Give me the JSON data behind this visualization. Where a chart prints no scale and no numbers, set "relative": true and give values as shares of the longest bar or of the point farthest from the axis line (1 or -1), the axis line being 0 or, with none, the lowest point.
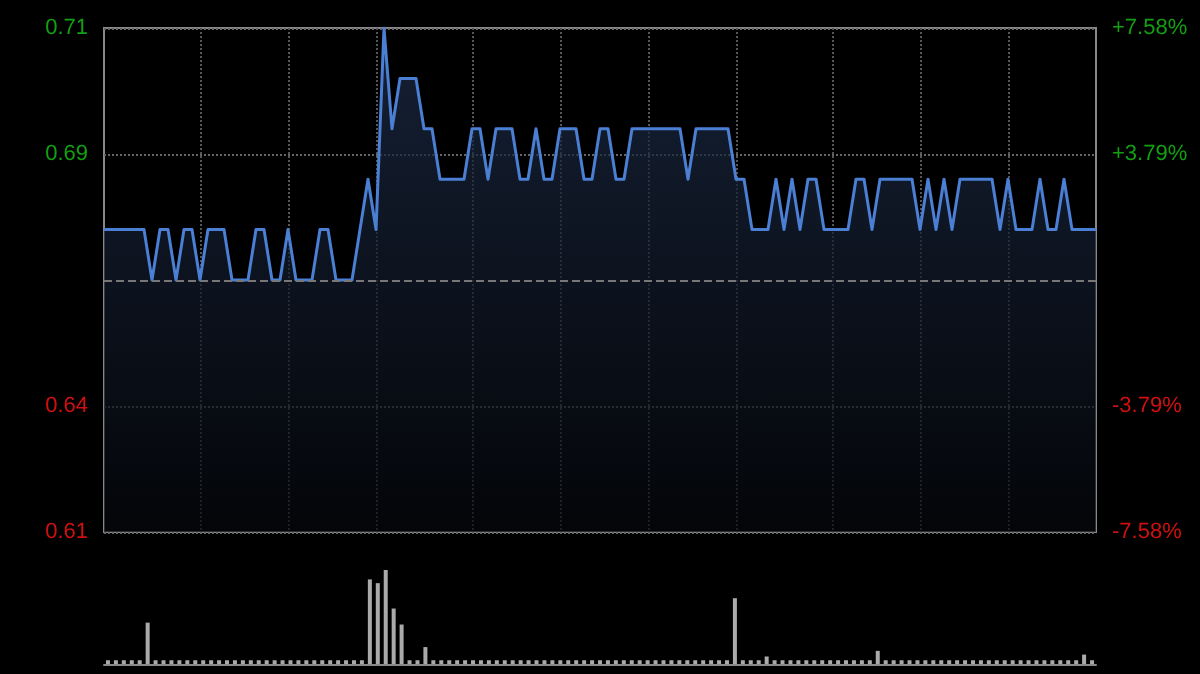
{
  "chart_data": [
    {
      "type": "area",
      "tick_labels": "y",
      "grid": true,
      "categories": [
        null,
        null,
        null,
        null,
        null,
        null,
        null,
        null,
        null,
        null,
        null,
        null,
        null,
        null,
        null,
        null,
        null,
        null,
        null,
        null,
        null,
        null,
        null,
        null,
        null,
        null,
        null,
        null,
        null,
        null,
        null,
        null,
        null,
        null,
        null,
        null,
        null,
        null,
        null,
        null,
        null,
        null,
        null,
        null,
        null,
        null,
        null,
        null,
        null,
        null,
        null,
        null,
        null,
        null,
        null,
        null,
        null,
        null,
        null,
        null,
        null,
        null,
        null,
        null,
        null,
        null,
        null,
        null,
        null,
        null,
        null,
        null,
        null,
        null,
        null,
        null,
        null,
        null,
        null,
        null,
        null,
        null,
        null,
        null,
        null,
        null,
        null,
        null,
        null,
        null,
        null,
        null,
        null,
        null,
        null,
        null,
        null,
        null,
        null,
        null,
        null,
        null,
        null,
        null,
        null,
        null,
        null,
        null,
        null,
        null,
        null,
        null,
        null,
        null,
        null,
        null,
        null,
        null,
        null,
        null,
        null,
        null,
        null,
        null,
        null
      ],
      "series": [
        {
          "color": "#4a7fd4",
          "values": [
            0.67,
            0.67,
            0.67,
            0.67,
            0.67,
            0.67,
            0.66,
            0.67,
            0.67,
            0.66,
            0.67,
            0.67,
            0.66,
            0.67,
            0.67,
            0.67,
            0.66,
            0.66,
            0.66,
            0.67,
            0.67,
            0.66,
            0.66,
            0.67,
            0.66,
            0.66,
            0.66,
            0.67,
            0.67,
            0.66,
            0.66,
            0.66,
            0.67,
            0.68,
            0.67,
            0.71,
            0.69,
            0.7,
            0.7,
            0.7,
            0.69,
            0.69,
            0.68,
            0.68,
            0.68,
            0.68,
            0.69,
            0.69,
            0.68,
            0.69,
            0.69,
            0.69,
            0.68,
            0.68,
            0.69,
            0.68,
            0.68,
            0.69,
            0.69,
            0.69,
            0.68,
            0.68,
            0.69,
            0.69,
            0.68,
            0.68,
            0.69,
            0.69,
            0.69,
            0.69,
            0.69,
            0.69,
            0.69,
            0.68,
            0.69,
            0.69,
            0.69,
            0.69,
            0.69,
            0.68,
            0.68,
            0.67,
            0.67,
            0.67,
            0.68,
            0.67,
            0.68,
            0.67,
            0.68,
            0.68,
            0.67,
            0.67,
            0.67,
            0.67,
            0.68,
            0.68,
            0.67,
            0.68,
            0.68,
            0.68,
            0.68,
            0.68,
            0.67,
            0.68,
            0.67,
            0.68,
            0.67,
            0.68,
            0.68,
            0.68,
            0.68,
            0.68,
            0.67,
            0.68,
            0.67,
            0.67,
            0.67,
            0.68,
            0.67,
            0.67,
            0.68,
            0.67,
            0.67,
            0.67,
            0.67
          ]
        }
      ],
      "ylim": [
        0.61,
        0.71
      ],
      "yticks": [
        0.61,
        {
          "value": 0.635,
          "label": "0.64"
        },
        {
          "value": 0.685,
          "label": "0.69"
        },
        0.71
      ],
      "y2lim": [
        -7.58,
        7.58
      ],
      "y2ticks": [
        {
          "value": -7.58,
          "label": "-7.58%"
        },
        {
          "value": -3.79,
          "label": "-3.79%"
        },
        {
          "value": 3.79,
          "label": "+3.79%"
        },
        {
          "value": 7.58,
          "label": "+7.58%"
        }
      ],
      "ref_lines": [
        {
          "axis": "y",
          "value": 0.66,
          "color": "#777777",
          "line_style": "dashed"
        }
      ]
    },
    {
      "type": "bar",
      "relative": true,
      "tick_labels": false,
      "color": "#aaaaaa",
      "categories": [
        null,
        null,
        null,
        null,
        null,
        null,
        null,
        null,
        null,
        null,
        null,
        null,
        null,
        null,
        null,
        null,
        null,
        null,
        null,
        null,
        null,
        null,
        null,
        null,
        null,
        null,
        null,
        null,
        null,
        null,
        null,
        null,
        null,
        null,
        null,
        null,
        null,
        null,
        null,
        null,
        null,
        null,
        null,
        null,
        null,
        null,
        null,
        null,
        null,
        null,
        null,
        null,
        null,
        null,
        null,
        null,
        null,
        null,
        null,
        null,
        null,
        null,
        null,
        null,
        null,
        null,
        null,
        null,
        null,
        null,
        null,
        null,
        null,
        null,
        null,
        null,
        null,
        null,
        null,
        null,
        null,
        null,
        null,
        null,
        null,
        null,
        null,
        null,
        null,
        null,
        null,
        null,
        null,
        null,
        null,
        null,
        null,
        null,
        null,
        null,
        null,
        null,
        null,
        null,
        null,
        null,
        null,
        null,
        null,
        null,
        null,
        null,
        null,
        null,
        null,
        null,
        null,
        null,
        null,
        null,
        null,
        null,
        null,
        null,
        null
      ],
      "values": [
        0.04,
        0.04,
        0.04,
        0.04,
        0.04,
        0.44,
        0.04,
        0.04,
        0.04,
        0.04,
        0.04,
        0.04,
        0.04,
        0.04,
        0.04,
        0.04,
        0.04,
        0.04,
        0.04,
        0.04,
        0.04,
        0.04,
        0.04,
        0.04,
        0.04,
        0.04,
        0.04,
        0.04,
        0.04,
        0.04,
        0.04,
        0.04,
        0.04,
        0.9,
        0.86,
        1,
        0.59,
        0.42,
        0.04,
        0.04,
        0.18,
        0.04,
        0.04,
        0.04,
        0.04,
        0.04,
        0.04,
        0.04,
        0.04,
        0.04,
        0.04,
        0.04,
        0.04,
        0.04,
        0.04,
        0.04,
        0.04,
        0.04,
        0.04,
        0.04,
        0.04,
        0.04,
        0.04,
        0.04,
        0.04,
        0.04,
        0.04,
        0.04,
        0.04,
        0.04,
        0.04,
        0.04,
        0.04,
        0.04,
        0.04,
        0.04,
        0.04,
        0.04,
        0.04,
        0.7,
        0.04,
        0.04,
        0.04,
        0.08,
        0.04,
        0.04,
        0.04,
        0.04,
        0.04,
        0.04,
        0.04,
        0.04,
        0.04,
        0.04,
        0.04,
        0.04,
        0.04,
        0.14,
        0.04,
        0.04,
        0.04,
        0.04,
        0.04,
        0.04,
        0.04,
        0.04,
        0.04,
        0.04,
        0.04,
        0.04,
        0.04,
        0.04,
        0.04,
        0.04,
        0.04,
        0.04,
        0.04,
        0.04,
        0.04,
        0.04,
        0.04,
        0.04,
        0.04,
        0.1,
        0.04
      ]
    }
  ]
}
